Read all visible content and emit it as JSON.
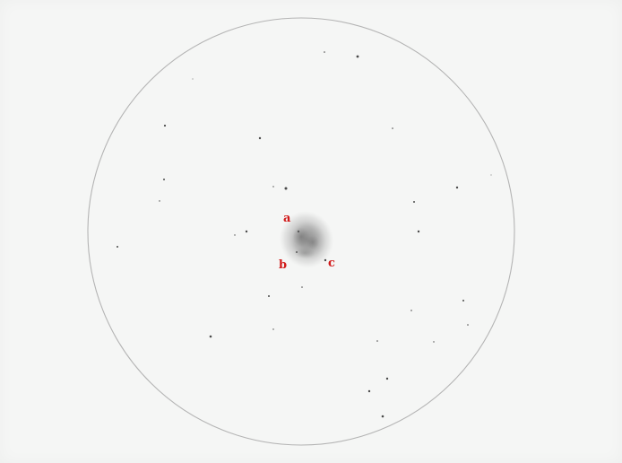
{
  "drawing": {
    "colors": {
      "paper": "#f5f6f5",
      "field_circle": "#b4b4b4",
      "star": "#4a4a4a",
      "nebula": "#8c8c8c",
      "label": "#d11a1a"
    },
    "labels": {
      "a": "a",
      "b": "b",
      "c": "c"
    }
  }
}
